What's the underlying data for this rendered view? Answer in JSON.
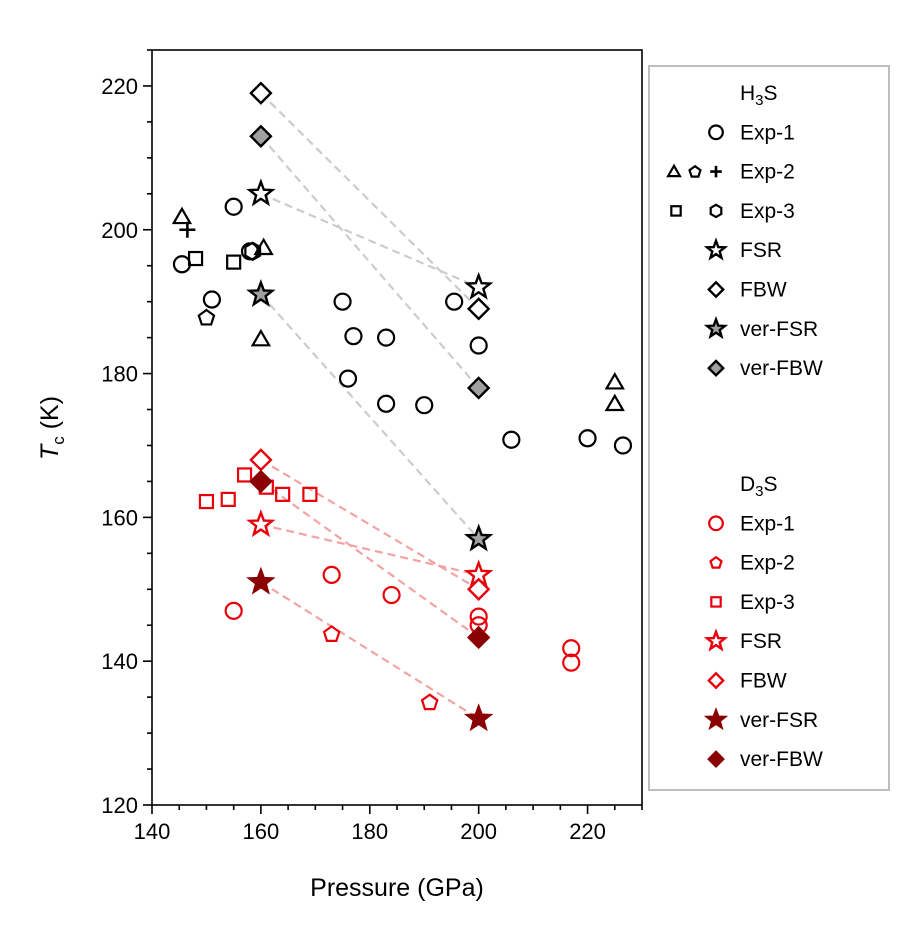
{
  "chart_data": {
    "type": "scatter",
    "xlabel": "Pressure (GPa)",
    "ylabel": {
      "main": "T",
      "sub": "c",
      "unit": " (K)"
    },
    "xlim": [
      140,
      230
    ],
    "ylim": [
      120,
      225
    ],
    "xticks": [
      140,
      160,
      180,
      200,
      220
    ],
    "yticks": [
      120,
      140,
      160,
      180,
      200,
      220
    ],
    "xminor_step": 5,
    "yminor_step": 5,
    "colors": {
      "black": "#000000",
      "red": "#e8000b",
      "dark_red": "#8b0000",
      "gray_fill": "#a0a0a0",
      "h_line": "#cccccc",
      "d_line": "#f4a3a3"
    },
    "legend": {
      "position": "right",
      "groups": [
        {
          "title": {
            "pre": "H",
            "sub": "3",
            "post": "S"
          },
          "color": "#000000",
          "entries": [
            {
              "label": "Exp-1",
              "markers": [
                "circle"
              ]
            },
            {
              "label": "Exp-2",
              "markers": [
                "triangle",
                "pentagon",
                "plus"
              ]
            },
            {
              "label": "Exp-3",
              "markers": [
                "square",
                "hexagon"
              ]
            },
            {
              "label": "FSR",
              "markers": [
                "star"
              ]
            },
            {
              "label": "FBW",
              "markers": [
                "diamond"
              ]
            },
            {
              "label": "ver-FSR",
              "markers": [
                "star-gray"
              ]
            },
            {
              "label": "ver-FBW",
              "markers": [
                "diamond-gray"
              ]
            }
          ]
        },
        {
          "title": {
            "pre": "D",
            "sub": "3",
            "post": "S"
          },
          "color": "#e8000b",
          "entries": [
            {
              "label": "Exp-1",
              "markers": [
                "circle"
              ]
            },
            {
              "label": "Exp-2",
              "markers": [
                "pentagon"
              ]
            },
            {
              "label": "Exp-3",
              "markers": [
                "square"
              ]
            },
            {
              "label": "FSR",
              "markers": [
                "star"
              ]
            },
            {
              "label": "FBW",
              "markers": [
                "diamond"
              ]
            },
            {
              "label": "ver-FSR",
              "markers": [
                "star-dark"
              ]
            },
            {
              "label": "ver-FBW",
              "markers": [
                "diamond-dark"
              ]
            }
          ]
        }
      ]
    },
    "series": [
      {
        "name": "H3S Exp-1",
        "marker": "circle",
        "stroke": "#000000",
        "fill": "none",
        "points": [
          [
            145.5,
            195.2
          ],
          [
            151,
            190.3
          ],
          [
            155,
            203.2
          ],
          [
            158,
            197
          ],
          [
            175,
            190
          ],
          [
            177,
            185.2
          ],
          [
            176,
            179.3
          ],
          [
            183,
            185
          ],
          [
            183,
            175.8
          ],
          [
            190,
            175.6
          ],
          [
            195.5,
            190
          ],
          [
            200,
            183.9
          ],
          [
            206,
            170.8
          ],
          [
            220,
            171
          ],
          [
            226.5,
            170
          ]
        ]
      },
      {
        "name": "H3S Exp-2 triangle",
        "marker": "triangle",
        "stroke": "#000000",
        "fill": "none",
        "points": [
          [
            145.5,
            201.8
          ],
          [
            160.5,
            197.5
          ],
          [
            160,
            184.8
          ],
          [
            225,
            178.8
          ],
          [
            225,
            175.8
          ]
        ]
      },
      {
        "name": "H3S Exp-2 pentagon",
        "marker": "pentagon",
        "stroke": "#000000",
        "fill": "none",
        "points": [
          [
            150,
            187.8
          ]
        ]
      },
      {
        "name": "H3S Exp-2 plus",
        "marker": "plus",
        "stroke": "#000000",
        "fill": "none",
        "points": [
          [
            146.5,
            200
          ]
        ]
      },
      {
        "name": "H3S Exp-3 square",
        "marker": "square",
        "stroke": "#000000",
        "fill": "none",
        "points": [
          [
            148,
            196
          ],
          [
            155,
            195.5
          ]
        ]
      },
      {
        "name": "H3S Exp-3 hexagon",
        "marker": "hexagon",
        "stroke": "#000000",
        "fill": "none",
        "points": [
          [
            158.5,
            197
          ]
        ]
      },
      {
        "name": "H3S FSR",
        "marker": "star",
        "stroke": "#000000",
        "fill": "#ffffff",
        "points": [
          [
            160,
            205
          ],
          [
            200,
            192
          ]
        ]
      },
      {
        "name": "H3S FBW",
        "marker": "diamond",
        "stroke": "#000000",
        "fill": "#ffffff",
        "points": [
          [
            160,
            219
          ],
          [
            200,
            189
          ]
        ]
      },
      {
        "name": "H3S ver-FSR",
        "marker": "star",
        "stroke": "#000000",
        "fill": "#a0a0a0",
        "points": [
          [
            160,
            191
          ],
          [
            200,
            157
          ]
        ]
      },
      {
        "name": "H3S ver-FBW",
        "marker": "diamond",
        "stroke": "#000000",
        "fill": "#a0a0a0",
        "points": [
          [
            160,
            213
          ],
          [
            200,
            178
          ]
        ]
      },
      {
        "name": "D3S Exp-1",
        "marker": "circle",
        "stroke": "#e8000b",
        "fill": "none",
        "points": [
          [
            155,
            147
          ],
          [
            173,
            152
          ],
          [
            184,
            149.2
          ],
          [
            200,
            146.2
          ],
          [
            200,
            145
          ],
          [
            217,
            141.8
          ],
          [
            217,
            139.8
          ]
        ]
      },
      {
        "name": "D3S Exp-2",
        "marker": "pentagon",
        "stroke": "#e8000b",
        "fill": "none",
        "points": [
          [
            173,
            143.8
          ],
          [
            191,
            134.3
          ]
        ]
      },
      {
        "name": "D3S Exp-3",
        "marker": "square",
        "stroke": "#e8000b",
        "fill": "none",
        "points": [
          [
            150,
            162.2
          ],
          [
            154,
            162.5
          ],
          [
            157,
            165.9
          ],
          [
            161,
            164.2
          ],
          [
            164,
            163.2
          ],
          [
            169,
            163.2
          ]
        ]
      },
      {
        "name": "D3S FSR",
        "marker": "star",
        "stroke": "#e8000b",
        "fill": "#ffffff",
        "points": [
          [
            160,
            159
          ],
          [
            200,
            152
          ]
        ]
      },
      {
        "name": "D3S FBW",
        "marker": "diamond",
        "stroke": "#e8000b",
        "fill": "#ffffff",
        "points": [
          [
            160,
            168
          ],
          [
            200,
            150
          ]
        ]
      },
      {
        "name": "D3S ver-FSR",
        "marker": "star",
        "stroke": "#8b0000",
        "fill": "#8b0000",
        "points": [
          [
            160,
            151
          ],
          [
            200,
            132
          ]
        ]
      },
      {
        "name": "D3S ver-FBW",
        "marker": "diamond",
        "stroke": "#8b0000",
        "fill": "#8b0000",
        "points": [
          [
            160,
            165
          ],
          [
            200,
            143.3
          ]
        ]
      }
    ],
    "connectors": [
      {
        "group": "H3S",
        "color": "#cccccc",
        "from": [
          160,
          219
        ],
        "to": [
          200,
          189
        ]
      },
      {
        "group": "H3S",
        "color": "#cccccc",
        "from": [
          160,
          205
        ],
        "to": [
          200,
          192
        ]
      },
      {
        "group": "H3S",
        "color": "#cccccc",
        "from": [
          160,
          213
        ],
        "to": [
          200,
          178
        ]
      },
      {
        "group": "H3S",
        "color": "#cccccc",
        "from": [
          160,
          191
        ],
        "to": [
          200,
          157
        ]
      },
      {
        "group": "D3S",
        "color": "#f4a3a3",
        "from": [
          160,
          168
        ],
        "to": [
          200,
          150
        ]
      },
      {
        "group": "D3S",
        "color": "#f4a3a3",
        "from": [
          160,
          159
        ],
        "to": [
          200,
          152
        ]
      },
      {
        "group": "D3S",
        "color": "#f4a3a3",
        "from": [
          160,
          165
        ],
        "to": [
          200,
          143.3
        ]
      },
      {
        "group": "D3S",
        "color": "#f4a3a3",
        "from": [
          160,
          151
        ],
        "to": [
          200,
          132
        ]
      }
    ]
  }
}
